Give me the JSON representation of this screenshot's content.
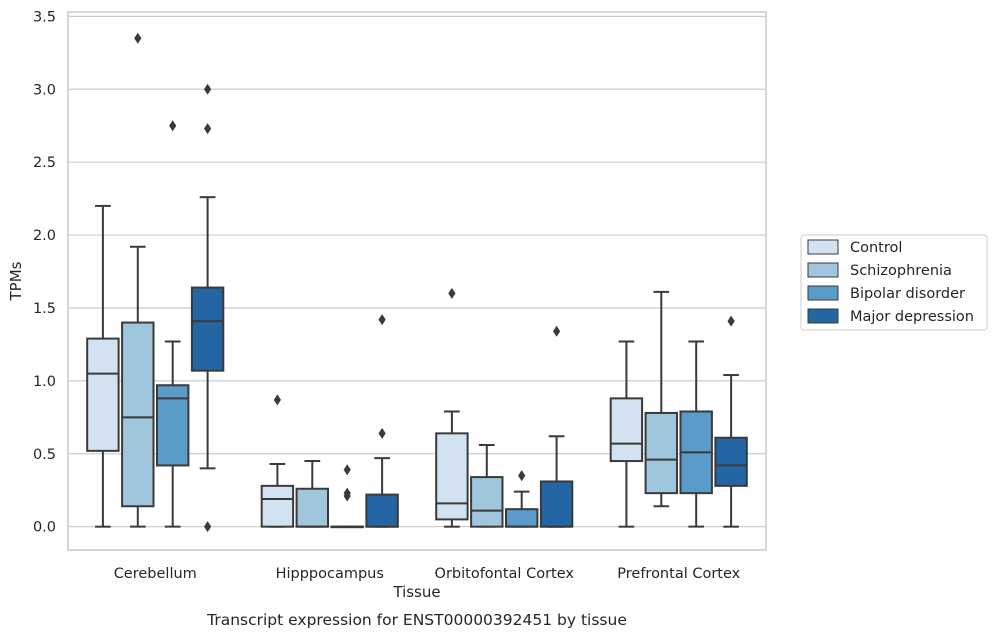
{
  "chart_data": {
    "type": "boxplot",
    "xlabel": "Tissue",
    "ylabel": "TPMs",
    "caption": "Transcript expression for ENST00000392451 by tissue",
    "ylim": [
      -0.16,
      3.53
    ],
    "yticks": [
      "0.0",
      "0.5",
      "1.0",
      "1.5",
      "2.0",
      "2.5",
      "3.0",
      "3.5"
    ],
    "grid": true,
    "legend_position": "right",
    "categories": [
      "Cerebellum",
      "Hipppocampus",
      "Orbitofontal Cortex",
      "Prefrontal Cortex"
    ],
    "series": [
      {
        "name": "Control",
        "color": "#d3e2f1",
        "boxes": [
          {
            "min": 0.0,
            "q1": 0.52,
            "median": 1.05,
            "q3": 1.29,
            "max": 2.2,
            "outliers": []
          },
          {
            "min": 0.0,
            "q1": 0.0,
            "median": 0.19,
            "q3": 0.28,
            "max": 0.43,
            "outliers": [
              0.87
            ]
          },
          {
            "min": 0.0,
            "q1": 0.05,
            "median": 0.16,
            "q3": 0.64,
            "max": 0.79,
            "outliers": [
              1.6
            ]
          },
          {
            "min": 0.0,
            "q1": 0.45,
            "median": 0.57,
            "q3": 0.88,
            "max": 1.27,
            "outliers": []
          }
        ]
      },
      {
        "name": "Schizophrenia",
        "color": "#9fc6dd",
        "boxes": [
          {
            "min": 0.0,
            "q1": 0.14,
            "median": 0.75,
            "q3": 1.4,
            "max": 1.92,
            "outliers": [
              3.35
            ]
          },
          {
            "min": 0.0,
            "q1": 0.0,
            "median": 0.0,
            "q3": 0.26,
            "max": 0.45,
            "outliers": []
          },
          {
            "min": 0.0,
            "q1": 0.0,
            "median": 0.11,
            "q3": 0.34,
            "max": 0.56,
            "outliers": []
          },
          {
            "min": 0.14,
            "q1": 0.23,
            "median": 0.46,
            "q3": 0.78,
            "max": 1.61,
            "outliers": []
          }
        ]
      },
      {
        "name": "Bipolar disorder",
        "color": "#5a9bc9",
        "boxes": [
          {
            "min": 0.0,
            "q1": 0.42,
            "median": 0.88,
            "q3": 0.97,
            "max": 1.27,
            "outliers": [
              2.75
            ]
          },
          {
            "min": 0.0,
            "q1": 0.0,
            "median": 0.0,
            "q3": 0.0,
            "max": 0.0,
            "outliers": [
              0.39,
              0.23,
              0.21
            ]
          },
          {
            "min": 0.0,
            "q1": 0.0,
            "median": 0.0,
            "q3": 0.12,
            "max": 0.24,
            "outliers": [
              0.35
            ]
          },
          {
            "min": 0.0,
            "q1": 0.23,
            "median": 0.51,
            "q3": 0.79,
            "max": 1.27,
            "outliers": []
          }
        ]
      },
      {
        "name": "Major depression",
        "color": "#2465a4",
        "boxes": [
          {
            "min": 0.4,
            "q1": 1.07,
            "median": 1.41,
            "q3": 1.64,
            "max": 2.26,
            "outliers": [
              3.0,
              2.73,
              0.0
            ]
          },
          {
            "min": 0.0,
            "q1": 0.0,
            "median": 0.0,
            "q3": 0.22,
            "max": 0.47,
            "outliers": [
              1.42,
              0.64
            ]
          },
          {
            "min": 0.0,
            "q1": 0.0,
            "median": 0.0,
            "q3": 0.31,
            "max": 0.62,
            "outliers": [
              1.34
            ]
          },
          {
            "min": 0.0,
            "q1": 0.28,
            "median": 0.42,
            "q3": 0.61,
            "max": 1.04,
            "outliers": [
              1.41
            ]
          }
        ]
      }
    ]
  }
}
